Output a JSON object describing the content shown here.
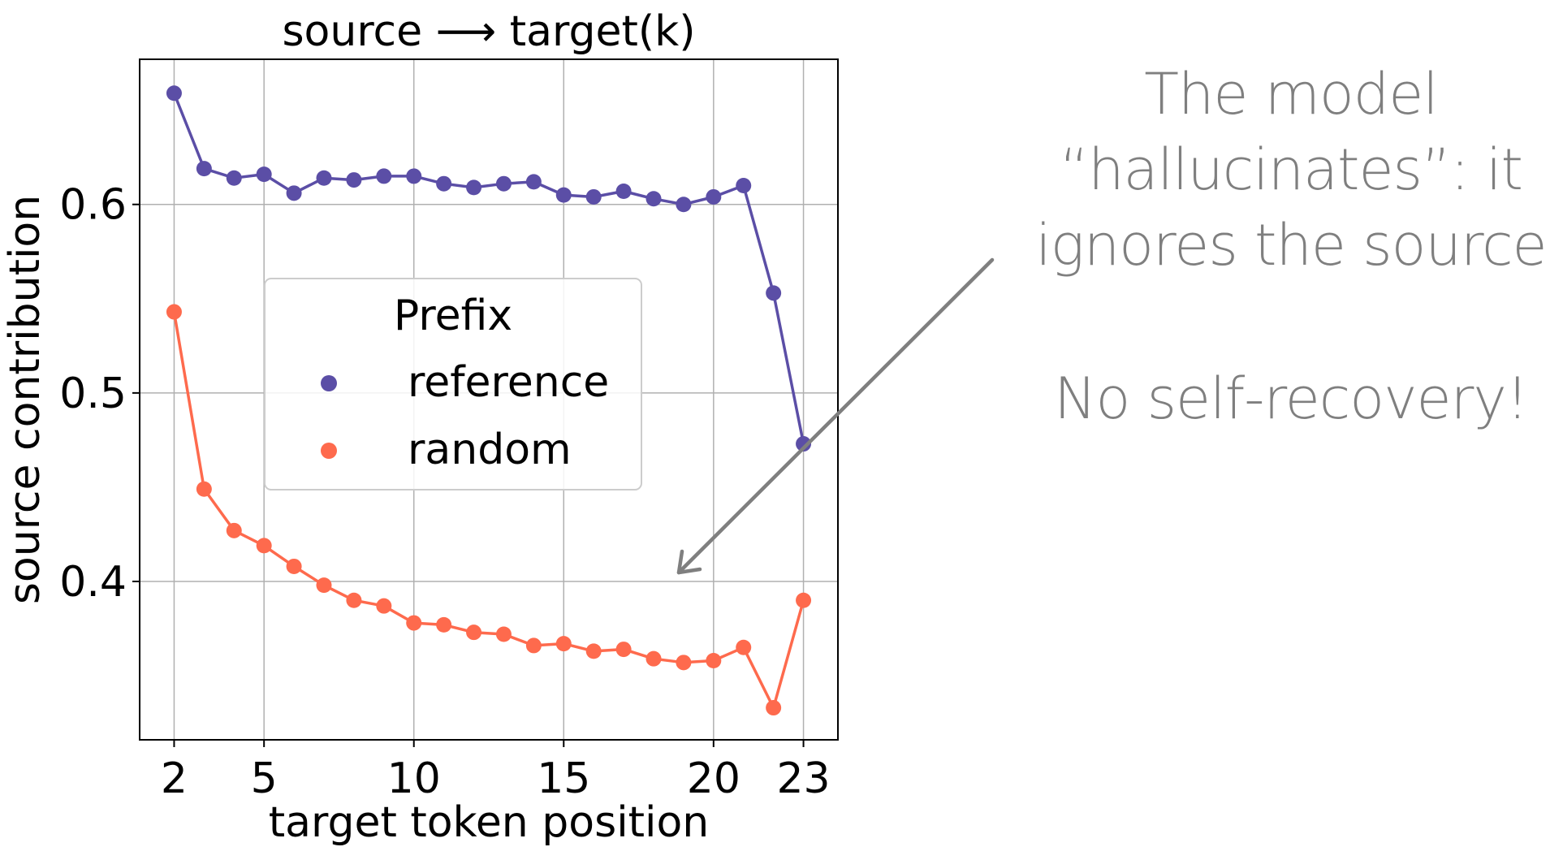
{
  "chart_data": {
    "type": "line",
    "title": "source ⟶ target(k)",
    "xlabel": "target token position",
    "ylabel": "source contribution",
    "x": [
      2,
      3,
      4,
      5,
      6,
      7,
      8,
      9,
      10,
      11,
      12,
      13,
      14,
      15,
      16,
      17,
      18,
      19,
      20,
      21,
      22,
      23
    ],
    "xticks": [
      2,
      5,
      10,
      15,
      20,
      23
    ],
    "yticks": [
      0.4,
      0.5,
      0.6
    ],
    "xlim": [
      0.85,
      24.15
    ],
    "ylim": [
      0.316,
      0.677
    ],
    "grid": true,
    "legend": {
      "title": "Prefix",
      "placement": "center"
    },
    "series": [
      {
        "name": "reference",
        "color": "#5b4ea6",
        "values": [
          0.659,
          0.619,
          0.614,
          0.616,
          0.606,
          0.614,
          0.613,
          0.615,
          0.615,
          0.611,
          0.609,
          0.611,
          0.612,
          0.605,
          0.604,
          0.607,
          0.603,
          0.6,
          0.604,
          0.61,
          0.553,
          0.473
        ]
      },
      {
        "name": "random",
        "color": "#fe6a4d",
        "values": [
          0.543,
          0.449,
          0.427,
          0.419,
          0.408,
          0.398,
          0.39,
          0.387,
          0.378,
          0.377,
          0.373,
          0.372,
          0.366,
          0.367,
          0.363,
          0.364,
          0.359,
          0.357,
          0.358,
          0.365,
          0.333,
          0.39
        ]
      }
    ]
  },
  "annotation": {
    "lines": [
      "The model",
      "“hallucinates”: it",
      "ignores the source"
    ],
    "secondary": "No self-recovery!",
    "arrow_color": "#7f7f7f"
  }
}
